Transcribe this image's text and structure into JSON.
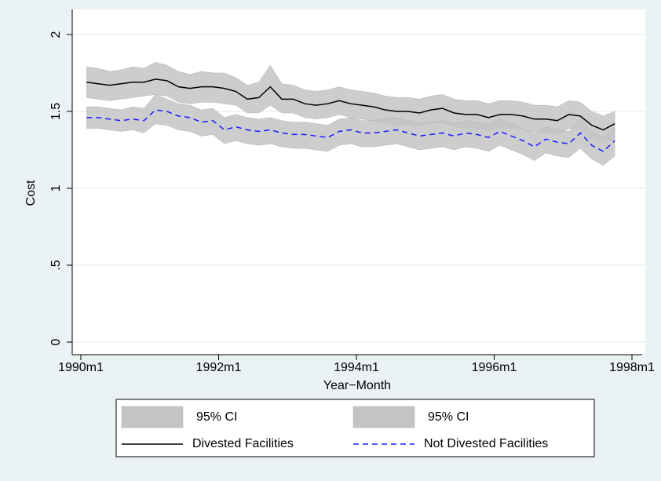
{
  "chart_data": {
    "type": "line",
    "x_label": "Year−Month",
    "y_label": "Cost",
    "x": [
      "1990m2",
      "1990m4",
      "1990m6",
      "1990m8",
      "1990m10",
      "1990m12",
      "1991m2",
      "1991m4",
      "1991m6",
      "1991m8",
      "1991m10",
      "1991m12",
      "1992m2",
      "1992m4",
      "1992m6",
      "1992m8",
      "1992m10",
      "1992m12",
      "1993m2",
      "1993m4",
      "1993m6",
      "1993m8",
      "1993m10",
      "1993m12",
      "1994m2",
      "1994m4",
      "1994m6",
      "1994m8",
      "1994m10",
      "1994m12",
      "1995m2",
      "1995m4",
      "1995m6",
      "1995m8",
      "1995m10",
      "1995m12",
      "1996m2",
      "1996m4",
      "1996m6",
      "1996m8",
      "1996m10",
      "1996m12",
      "1997m2",
      "1997m4",
      "1997m6",
      "1997m8",
      "1997m10"
    ],
    "xlim": [
      "1990m1",
      "1998m1"
    ],
    "xticks": [
      "1990m1",
      "1992m1",
      "1994m1",
      "1996m1",
      "1998m1"
    ],
    "ylim": [
      0,
      2
    ],
    "yticks": [
      0,
      {
        "value": 0.5,
        "label": ".5"
      },
      1,
      1.5,
      2
    ],
    "grid": true,
    "bands": [
      {
        "name": "95% CI",
        "color": "#c4c4c4",
        "upper": [
          1.79,
          1.78,
          1.76,
          1.77,
          1.79,
          1.78,
          1.82,
          1.8,
          1.76,
          1.74,
          1.76,
          1.75,
          1.75,
          1.72,
          1.67,
          1.69,
          1.8,
          1.68,
          1.67,
          1.64,
          1.63,
          1.64,
          1.66,
          1.64,
          1.63,
          1.62,
          1.6,
          1.59,
          1.59,
          1.58,
          1.6,
          1.61,
          1.58,
          1.57,
          1.57,
          1.55,
          1.57,
          1.57,
          1.56,
          1.54,
          1.54,
          1.53,
          1.57,
          1.56,
          1.5,
          1.47,
          1.5
        ],
        "lower": [
          1.59,
          1.58,
          1.57,
          1.58,
          1.59,
          1.6,
          1.61,
          1.6,
          1.56,
          1.55,
          1.56,
          1.56,
          1.55,
          1.54,
          1.49,
          1.49,
          1.54,
          1.49,
          1.49,
          1.46,
          1.45,
          1.46,
          1.48,
          1.46,
          1.45,
          1.44,
          1.42,
          1.41,
          1.41,
          1.4,
          1.42,
          1.43,
          1.4,
          1.39,
          1.39,
          1.37,
          1.39,
          1.39,
          1.38,
          1.36,
          1.36,
          1.35,
          1.39,
          1.38,
          1.32,
          1.29,
          1.33
        ]
      },
      {
        "name": "95% CI",
        "color": "#c4c4c4",
        "upper": [
          1.53,
          1.53,
          1.52,
          1.51,
          1.53,
          1.52,
          1.61,
          1.58,
          1.55,
          1.54,
          1.51,
          1.52,
          1.46,
          1.48,
          1.46,
          1.45,
          1.46,
          1.44,
          1.43,
          1.43,
          1.42,
          1.41,
          1.45,
          1.46,
          1.44,
          1.44,
          1.45,
          1.46,
          1.44,
          1.42,
          1.43,
          1.44,
          1.42,
          1.44,
          1.43,
          1.41,
          1.45,
          1.42,
          1.39,
          1.35,
          1.4,
          1.38,
          1.37,
          1.45,
          1.37,
          1.33,
          1.4
        ],
        "lower": [
          1.39,
          1.39,
          1.38,
          1.37,
          1.38,
          1.36,
          1.42,
          1.41,
          1.38,
          1.37,
          1.34,
          1.35,
          1.29,
          1.31,
          1.29,
          1.28,
          1.29,
          1.27,
          1.26,
          1.26,
          1.25,
          1.24,
          1.28,
          1.29,
          1.27,
          1.27,
          1.28,
          1.29,
          1.27,
          1.25,
          1.26,
          1.27,
          1.25,
          1.27,
          1.26,
          1.24,
          1.28,
          1.25,
          1.22,
          1.18,
          1.23,
          1.21,
          1.2,
          1.26,
          1.19,
          1.15,
          1.21
        ]
      }
    ],
    "series": [
      {
        "name": "Divested Facilities",
        "color": "#000000",
        "dash": "solid",
        "values": [
          1.69,
          1.68,
          1.67,
          1.68,
          1.69,
          1.69,
          1.71,
          1.7,
          1.66,
          1.65,
          1.66,
          1.66,
          1.65,
          1.63,
          1.58,
          1.59,
          1.66,
          1.58,
          1.58,
          1.55,
          1.54,
          1.55,
          1.57,
          1.55,
          1.54,
          1.53,
          1.51,
          1.5,
          1.5,
          1.49,
          1.51,
          1.52,
          1.49,
          1.48,
          1.48,
          1.46,
          1.48,
          1.48,
          1.47,
          1.45,
          1.45,
          1.44,
          1.48,
          1.47,
          1.41,
          1.38,
          1.42
        ]
      },
      {
        "name": "Not Divested Facilities",
        "color": "#1a1aff",
        "dash": "dashed",
        "values": [
          1.46,
          1.46,
          1.45,
          1.44,
          1.45,
          1.44,
          1.51,
          1.5,
          1.47,
          1.46,
          1.43,
          1.44,
          1.38,
          1.4,
          1.38,
          1.37,
          1.38,
          1.36,
          1.35,
          1.35,
          1.34,
          1.33,
          1.37,
          1.38,
          1.36,
          1.36,
          1.37,
          1.38,
          1.36,
          1.34,
          1.35,
          1.36,
          1.34,
          1.36,
          1.35,
          1.33,
          1.37,
          1.34,
          1.31,
          1.27,
          1.32,
          1.3,
          1.29,
          1.36,
          1.28,
          1.24,
          1.31
        ]
      }
    ]
  }
}
